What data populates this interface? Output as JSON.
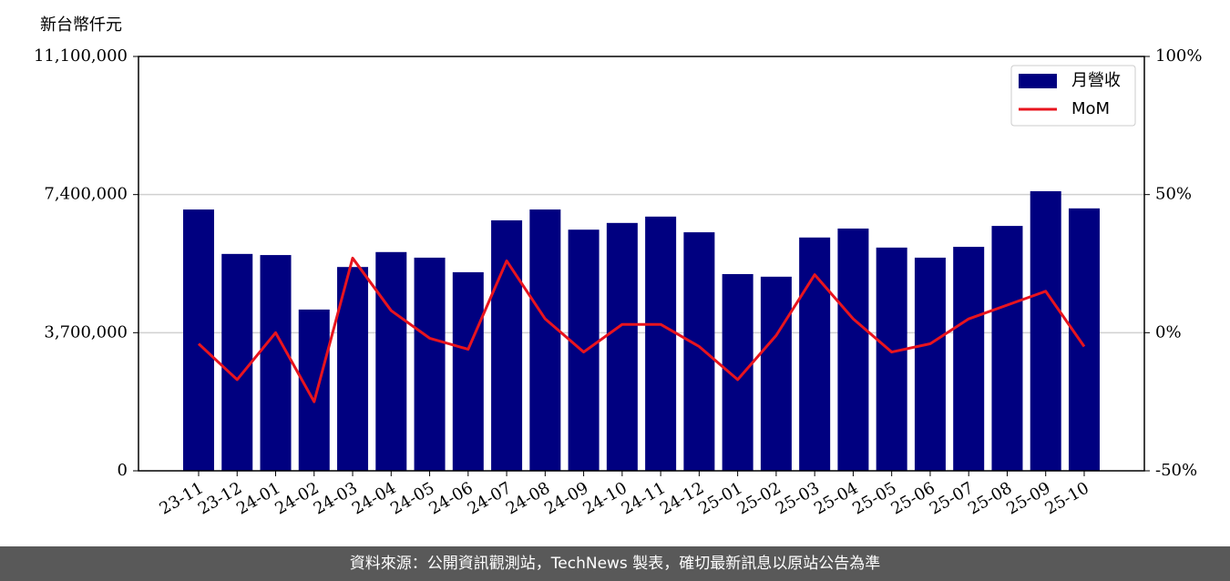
{
  "chart_data": {
    "type": "combo",
    "y_label": "新台幣仟元",
    "categories": [
      "23-11",
      "23-12",
      "24-01",
      "24-02",
      "24-03",
      "24-04",
      "24-05",
      "24-06",
      "24-07",
      "24-08",
      "24-09",
      "24-10",
      "24-11",
      "24-12",
      "25-01",
      "25-02",
      "25-03",
      "25-04",
      "25-05",
      "25-06",
      "25-07",
      "25-08",
      "25-09",
      "25-10"
    ],
    "series": [
      {
        "name": "月營收",
        "type": "bar",
        "axis": "y",
        "color": "#000080",
        "values": [
          7000000,
          5810000,
          5780000,
          4320000,
          5460000,
          5860000,
          5710000,
          5320000,
          6710000,
          7000000,
          6460000,
          6640000,
          6810000,
          6390000,
          5270000,
          5200000,
          6250000,
          6490000,
          5980000,
          5710000,
          6000000,
          6560000,
          7490000,
          7030000
        ]
      },
      {
        "name": "MoM",
        "type": "line",
        "axis": "y2",
        "color": "#e8141e",
        "values": [
          -4,
          -17,
          0,
          -25,
          27,
          8,
          -2,
          -6,
          26,
          5,
          -7,
          3,
          3,
          -5,
          -17,
          -1,
          21,
          5,
          -7,
          -4,
          5,
          10,
          15,
          -5
        ]
      }
    ],
    "ylim": [
      0,
      11100000
    ],
    "yticks": [
      0,
      {
        "value": 3700000,
        "label": "3,700,000"
      },
      {
        "value": 7400000,
        "label": "7,400,000"
      },
      {
        "value": 11100000,
        "label": "11,100,000"
      }
    ],
    "y2lim": [
      -50,
      100
    ],
    "y2ticks": [
      {
        "value": -50,
        "label": "-50%"
      },
      {
        "value": 0,
        "label": "0%"
      },
      {
        "value": 50,
        "label": "50%"
      },
      {
        "value": 100,
        "label": "100%"
      }
    ],
    "grid": true,
    "legend": "upper right"
  },
  "footer": "資料來源：公開資訊觀測站，TechNews 製表，確切最新訊息以原站公告為準"
}
